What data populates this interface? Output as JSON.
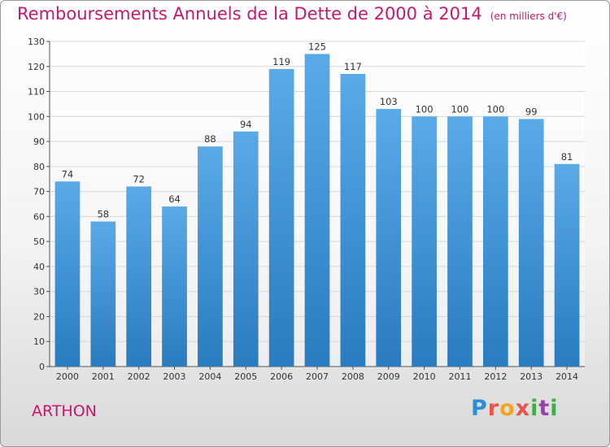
{
  "chart_data": {
    "type": "bar",
    "title": "Remboursements Annuels de la Dette de 2000 à 2014",
    "subtitle": "(en milliers d'€)",
    "categories": [
      "2000",
      "2001",
      "2002",
      "2003",
      "2004",
      "2005",
      "2006",
      "2007",
      "2008",
      "2009",
      "2010",
      "2011",
      "2012",
      "2013",
      "2014"
    ],
    "values": [
      74,
      58,
      72,
      64,
      88,
      94,
      119,
      125,
      117,
      103,
      100,
      100,
      100,
      99,
      81
    ],
    "ylim": [
      0,
      130
    ],
    "yticks": [
      0,
      10,
      20,
      30,
      40,
      50,
      60,
      70,
      80,
      90,
      100,
      110,
      120,
      130
    ],
    "xlabel": "",
    "ylabel": "",
    "grid": true,
    "bar_color_top": "#5aaae8",
    "bar_color_bottom": "#2a7bbf"
  },
  "footer": {
    "city": "ARTHON",
    "logo_letters": [
      "P",
      "r",
      "o",
      "x",
      "i",
      "t",
      "i"
    ],
    "logo_colors": [
      "#2f8fd6",
      "#e8534a",
      "#f2a51e",
      "#e8534a",
      "#3fae49",
      "#9b3fb5",
      "#3fae49"
    ]
  },
  "colors": {
    "accent": "#c8186e"
  }
}
